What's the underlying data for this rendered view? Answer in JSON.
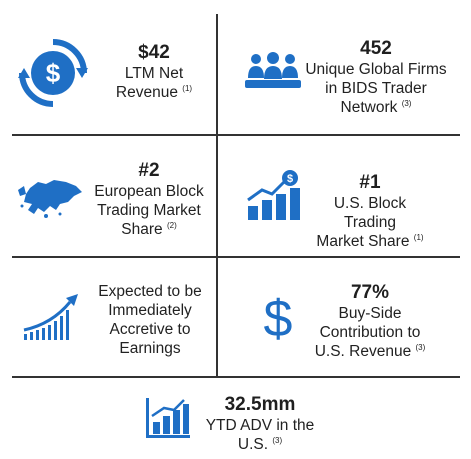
{
  "colors": {
    "accent": "#1f6fc5",
    "divider": "#333333",
    "text": "#222222"
  },
  "tiles": {
    "revenue": {
      "value": "$42",
      "line1": "LTM Net",
      "line2": "Revenue",
      "note": "(1)",
      "icon": "dollar-cycle-icon"
    },
    "firms": {
      "value": "452",
      "line1": "Unique Global Firms",
      "line2": "in BIDS Trader",
      "line3": "Network",
      "note": "(3)",
      "icon": "people-group-icon"
    },
    "european": {
      "value": "#2",
      "line1": "European Block",
      "line2": "Trading Market",
      "line3": "Share",
      "note": "(2)",
      "icon": "europe-map-icon"
    },
    "us_block": {
      "value": "#1",
      "line1": "U.S. Block Trading",
      "line2": "Market Share",
      "note": "(1)",
      "icon": "growth-bar-dollar-icon"
    },
    "accretive": {
      "line1": "Expected to be",
      "line2": "Immediately",
      "line3": "Accretive to",
      "line4": "Earnings",
      "icon": "rising-trend-icon"
    },
    "buyside": {
      "value": "77%",
      "line1": "Buy-Side",
      "line2": "Contribution to",
      "line3": "U.S. Revenue",
      "note": "(3)",
      "icon": "dollar-sign-icon"
    },
    "adv": {
      "value": "32.5mm",
      "line1": "YTD ADV in the",
      "line2": "U.S.",
      "note": "(3)",
      "icon": "bar-chart-icon"
    }
  }
}
